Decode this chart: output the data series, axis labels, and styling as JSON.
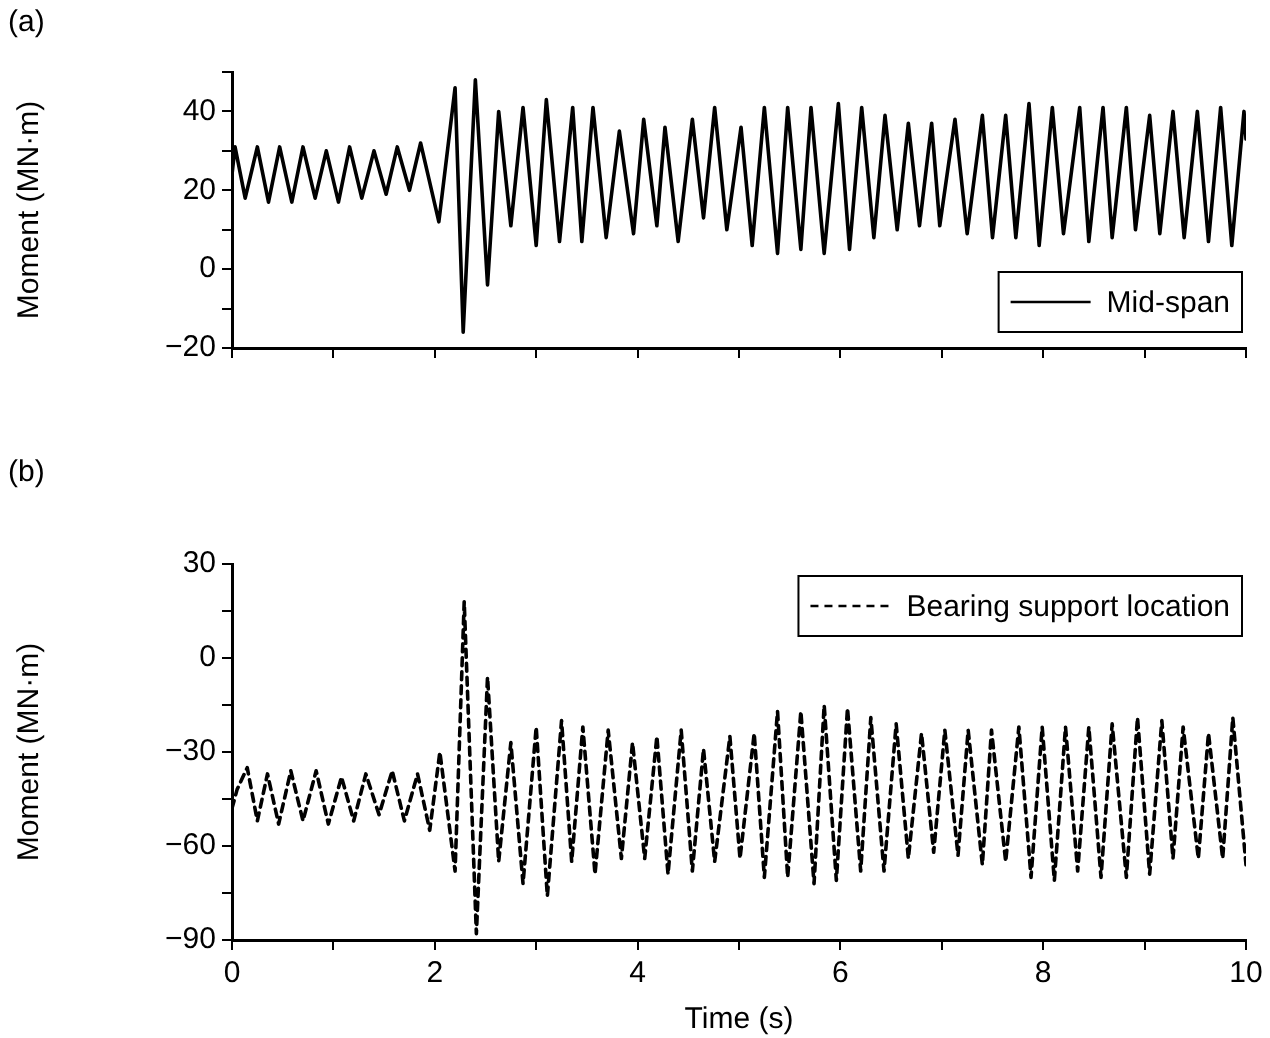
{
  "chart_data": [
    {
      "type": "line",
      "ylabel": "Moment (MN·m)",
      "annotations": [
        "(a)"
      ],
      "xlim": [
        0,
        10
      ],
      "ylim": [
        -20,
        50
      ],
      "xticks": [
        {
          "value": 0,
          "label": null
        },
        {
          "value": 1,
          "label": null
        },
        {
          "value": 2,
          "label": null
        },
        {
          "value": 3,
          "label": null
        },
        {
          "value": 4,
          "label": null
        },
        {
          "value": 5,
          "label": null
        },
        {
          "value": 6,
          "label": null
        },
        {
          "value": 7,
          "label": null
        },
        {
          "value": 8,
          "label": null
        },
        {
          "value": 9,
          "label": null
        },
        {
          "value": 10,
          "label": null
        }
      ],
      "yticks": [
        {
          "value": -20,
          "label": "−20"
        },
        {
          "value": -10,
          "label": null
        },
        0,
        {
          "value": 10,
          "label": null
        },
        20,
        {
          "value": 30,
          "label": null
        },
        40,
        {
          "value": 50,
          "label": null
        }
      ],
      "tick_labels": "y",
      "grid": false,
      "legend": "bottom right",
      "marker": "none",
      "series": [
        {
          "name": "Mid-span",
          "color": "#000000",
          "line_style": "solid",
          "x": [
            0,
            0.03,
            0.13,
            0.25,
            0.36,
            0.47,
            0.59,
            0.7,
            0.82,
            0.93,
            1.05,
            1.16,
            1.28,
            1.4,
            1.52,
            1.63,
            1.75,
            1.86,
            1.95,
            2.04,
            2.2,
            2.28,
            2.4,
            2.52,
            2.63,
            2.75,
            2.87,
            3,
            3.1,
            3.23,
            3.36,
            3.45,
            3.56,
            3.69,
            3.82,
            3.96,
            4.06,
            4.19,
            4.27,
            4.4,
            4.54,
            4.65,
            4.76,
            4.88,
            5.02,
            5.13,
            5.25,
            5.38,
            5.48,
            5.61,
            5.71,
            5.84,
            5.98,
            6.09,
            6.21,
            6.33,
            6.44,
            6.56,
            6.67,
            6.78,
            6.9,
            6.98,
            7.13,
            7.25,
            7.4,
            7.5,
            7.63,
            7.73,
            7.86,
            7.96,
            8.09,
            8.2,
            8.36,
            8.45,
            8.59,
            8.68,
            8.82,
            8.91,
            9.05,
            9.15,
            9.28,
            9.39,
            9.52,
            9.63,
            9.75,
            9.86,
            9.98,
            10
          ],
          "values": [
            24,
            31,
            18,
            31,
            17,
            31,
            17,
            31,
            18,
            30,
            17,
            31,
            18,
            30,
            19,
            31,
            20,
            32,
            22,
            12,
            46,
            -16,
            48,
            -4,
            40,
            11,
            41,
            6,
            43,
            7,
            41,
            7,
            41,
            8,
            35,
            9,
            38,
            11,
            36,
            7,
            38,
            13,
            41,
            10,
            36,
            6,
            41,
            4,
            41,
            5,
            41,
            4,
            42,
            5,
            41,
            8,
            39,
            10,
            37,
            11,
            37,
            11,
            38,
            9,
            39,
            8,
            39,
            8,
            42,
            6,
            41,
            9,
            41,
            7,
            41,
            8,
            41,
            10,
            39,
            9,
            40,
            8,
            40,
            7,
            41,
            6,
            40,
            33
          ]
        }
      ]
    },
    {
      "type": "line",
      "ylabel": "Moment (MN·m)",
      "xlabel": "Time (s)",
      "annotations": [
        "(b)"
      ],
      "xlim": [
        0,
        10
      ],
      "ylim": [
        -90,
        30
      ],
      "xticks": [
        0,
        {
          "value": 1,
          "label": null
        },
        2,
        {
          "value": 3,
          "label": null
        },
        4,
        {
          "value": 5,
          "label": null
        },
        6,
        {
          "value": 7,
          "label": null
        },
        8,
        {
          "value": 9,
          "label": null
        },
        10
      ],
      "yticks": [
        {
          "value": -90,
          "label": "−90"
        },
        {
          "value": -75,
          "label": null
        },
        {
          "value": -60,
          "label": "−60"
        },
        {
          "value": -45,
          "label": null
        },
        {
          "value": -30,
          "label": "−30"
        },
        {
          "value": -15,
          "label": null
        },
        0,
        {
          "value": 15,
          "label": null
        },
        30
      ],
      "grid": false,
      "legend": "top right",
      "marker": "none",
      "series": [
        {
          "name": "Bearing support location",
          "color": "#000000",
          "line_style": "dashed",
          "x": [
            0,
            0.05,
            0.15,
            0.25,
            0.35,
            0.46,
            0.58,
            0.7,
            0.83,
            0.95,
            1.08,
            1.2,
            1.32,
            1.45,
            1.58,
            1.7,
            1.83,
            1.95,
            2.05,
            2.2,
            2.29,
            2.41,
            2.52,
            2.63,
            2.75,
            2.87,
            3,
            3.11,
            3.25,
            3.35,
            3.46,
            3.58,
            3.71,
            3.84,
            3.95,
            4.07,
            4.19,
            4.3,
            4.43,
            4.54,
            4.65,
            4.76,
            4.91,
            5.01,
            5.15,
            5.25,
            5.38,
            5.48,
            5.61,
            5.74,
            5.84,
            5.96,
            6.07,
            6.2,
            6.3,
            6.43,
            6.55,
            6.67,
            6.8,
            6.92,
            7.03,
            7.16,
            7.26,
            7.4,
            7.49,
            7.63,
            7.76,
            7.88,
            7.99,
            8.11,
            8.22,
            8.34,
            8.45,
            8.57,
            8.68,
            8.82,
            8.93,
            9.05,
            9.17,
            9.28,
            9.38,
            9.53,
            9.63,
            9.77,
            9.87,
            10
          ],
          "values": [
            -48,
            -42,
            -35,
            -52,
            -37,
            -53,
            -36,
            -52,
            -36,
            -53,
            -38,
            -52,
            -37,
            -50,
            -36,
            -52,
            -37,
            -55,
            -30,
            -68,
            18,
            -88,
            -6,
            -65,
            -27,
            -72,
            -22,
            -76,
            -20,
            -65,
            -22,
            -69,
            -23,
            -64,
            -27,
            -64,
            -25,
            -69,
            -23,
            -68,
            -29,
            -65,
            -25,
            -64,
            -24,
            -70,
            -17,
            -70,
            -17,
            -72,
            -15,
            -71,
            -16,
            -68,
            -19,
            -68,
            -21,
            -64,
            -24,
            -62,
            -23,
            -63,
            -23,
            -66,
            -23,
            -65,
            -22,
            -70,
            -22,
            -71,
            -22,
            -68,
            -22,
            -70,
            -21,
            -70,
            -19,
            -69,
            -20,
            -64,
            -22,
            -64,
            -24,
            -64,
            -19,
            -66
          ]
        }
      ]
    }
  ]
}
